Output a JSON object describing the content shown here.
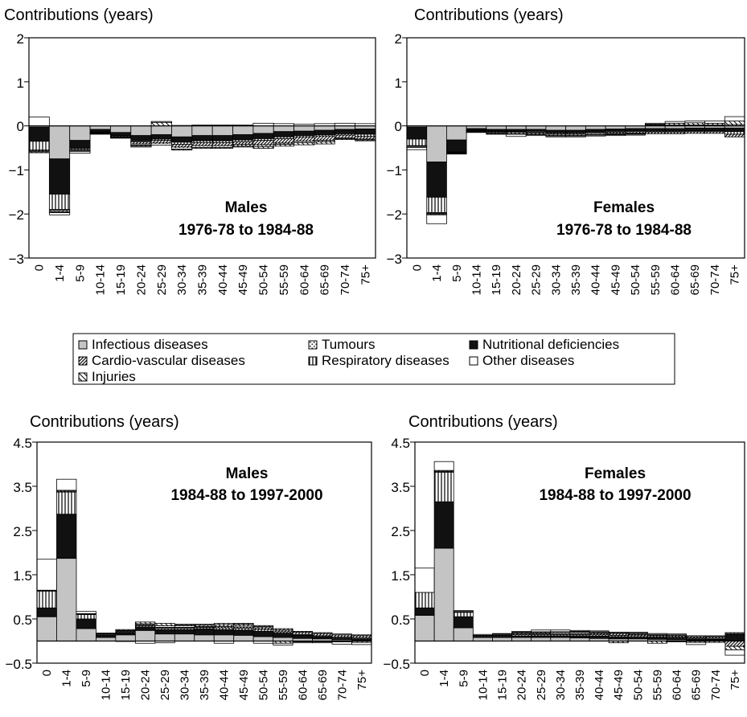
{
  "legend": {
    "items": [
      {
        "label": "Infectious diseases",
        "key": "infectious"
      },
      {
        "label": "Tumours",
        "key": "tumours"
      },
      {
        "label": "Nutritional deficiencies",
        "key": "nutritional"
      },
      {
        "label": "Cardio-vascular diseases",
        "key": "cardio"
      },
      {
        "label": "Respiratory diseases",
        "key": "respiratory"
      },
      {
        "label": "Other diseases",
        "key": "other"
      },
      {
        "label": "Injuries",
        "key": "injuries"
      }
    ]
  },
  "patterns": {
    "infectious": "solid-grey",
    "nutritional": "solid-black",
    "other": "solid-white",
    "tumours": "dotted",
    "respiratory": "vertical-lines",
    "cardio": "diagonal-dense",
    "injuries": "diagonal-sparse"
  },
  "colors": {
    "infectious": "#c4c4c4",
    "nutritional": "#111111",
    "other": "#ffffff"
  },
  "chart_data": [
    {
      "type": "bar",
      "stacked": true,
      "title_top": "Contributions (years)",
      "title_line1": "Males",
      "title_line2": "1976-78 to 1984-88",
      "ylim": [
        -3,
        2
      ],
      "yticks": [
        "2",
        "1",
        "0",
        "−1",
        "−2",
        "−3"
      ],
      "ytick_values": [
        2,
        1,
        0,
        -1,
        -2,
        -3
      ],
      "categories": [
        "0",
        "1-4",
        "5-9",
        "10-14",
        "15-19",
        "20-24",
        "25-29",
        "30-34",
        "35-39",
        "40-44",
        "45-49",
        "50-54",
        "55-59",
        "60-64",
        "65-69",
        "70-74",
        "75+"
      ],
      "series": [
        {
          "name": "Infectious diseases",
          "key": "infectious",
          "values": [
            -0.03,
            -0.75,
            -0.33,
            -0.08,
            -0.15,
            -0.22,
            -0.2,
            -0.25,
            -0.22,
            -0.22,
            -0.2,
            -0.17,
            -0.13,
            -0.12,
            -0.1,
            -0.08,
            -0.07
          ]
        },
        {
          "name": "Nutritional deficiencies",
          "key": "nutritional",
          "values": [
            -0.32,
            -0.8,
            -0.18,
            -0.06,
            -0.07,
            -0.12,
            -0.1,
            -0.12,
            -0.12,
            -0.12,
            -0.12,
            -0.12,
            -0.12,
            -0.1,
            -0.1,
            -0.1,
            -0.12
          ]
        },
        {
          "name": "Respiratory diseases",
          "key": "respiratory",
          "values": [
            -0.2,
            -0.35,
            -0.03,
            -0.01,
            -0.01,
            -0.02,
            -0.03,
            -0.05,
            -0.04,
            -0.04,
            -0.04,
            -0.04,
            -0.04,
            -0.03,
            -0.03,
            -0.03,
            -0.05
          ]
        },
        {
          "name": "Cardio-vascular diseases",
          "key": "cardio",
          "values": [
            -0.02,
            -0.02,
            -0.01,
            -0.01,
            -0.02,
            -0.05,
            -0.06,
            -0.06,
            -0.07,
            -0.07,
            -0.06,
            -0.1,
            -0.1,
            -0.1,
            -0.1,
            -0.06,
            -0.06
          ]
        },
        {
          "name": "Tumours",
          "key": "tumours",
          "values": [
            -0.02,
            -0.03,
            -0.02,
            -0.01,
            -0.01,
            -0.03,
            -0.05,
            -0.05,
            -0.04,
            -0.04,
            -0.04,
            -0.04,
            -0.03,
            -0.03,
            -0.03,
            -0.02,
            -0.02
          ]
        },
        {
          "name": "Injuries",
          "key": "injuries",
          "values": [
            -0.02,
            -0.02,
            -0.01,
            -0.01,
            -0.01,
            -0.02,
            0.08,
            -0.02,
            -0.02,
            -0.02,
            -0.02,
            -0.04,
            -0.04,
            -0.05,
            -0.05,
            -0.02,
            -0.02
          ]
        },
        {
          "name": "Other diseases",
          "key": "other",
          "values": [
            0.2,
            -0.05,
            -0.04,
            -0.01,
            -0.01,
            -0.02,
            0.02,
            0.01,
            0.02,
            0.02,
            0.02,
            0.06,
            0.05,
            0.04,
            0.05,
            0.06,
            0.05
          ]
        }
      ]
    },
    {
      "type": "bar",
      "stacked": true,
      "title_top": "Contributions (years)",
      "title_line1": "Females",
      "title_line2": "1976-78 to 1984-88",
      "ylim": [
        -3,
        2
      ],
      "yticks": [
        "2",
        "1",
        "0",
        "−1",
        "−2",
        "−3"
      ],
      "ytick_values": [
        2,
        1,
        0,
        -1,
        -2,
        -3
      ],
      "categories": [
        "0",
        "1-4",
        "5-9",
        "10-14",
        "15-19",
        "20-24",
        "25-29",
        "30-34",
        "35-39",
        "40-44",
        "45-49",
        "50-54",
        "55-59",
        "60-64",
        "65-69",
        "70-74",
        "75+"
      ],
      "series": [
        {
          "name": "Infectious diseases",
          "key": "infectious",
          "values": [
            -0.03,
            -0.82,
            -0.32,
            -0.06,
            -0.08,
            -0.08,
            -0.08,
            -0.1,
            -0.1,
            -0.08,
            -0.07,
            -0.06,
            -0.06,
            -0.06,
            -0.05,
            -0.05,
            -0.05
          ]
        },
        {
          "name": "Nutritional deficiencies",
          "key": "nutritional",
          "values": [
            -0.27,
            -0.8,
            -0.27,
            -0.04,
            -0.04,
            -0.04,
            -0.04,
            -0.05,
            -0.05,
            -0.05,
            -0.05,
            -0.05,
            -0.06,
            -0.06,
            -0.06,
            -0.06,
            -0.08
          ]
        },
        {
          "name": "Respiratory diseases",
          "key": "respiratory",
          "values": [
            -0.15,
            -0.35,
            -0.01,
            -0.01,
            -0.01,
            -0.01,
            -0.02,
            -0.02,
            -0.02,
            -0.02,
            -0.02,
            -0.02,
            -0.02,
            -0.02,
            -0.02,
            -0.02,
            -0.06
          ]
        },
        {
          "name": "Cardio-vascular diseases",
          "key": "cardio",
          "values": [
            -0.01,
            -0.02,
            -0.01,
            -0.01,
            -0.02,
            -0.02,
            -0.02,
            -0.02,
            -0.02,
            -0.02,
            -0.03,
            -0.03,
            -0.04,
            -0.04,
            -0.04,
            -0.04,
            -0.06
          ]
        },
        {
          "name": "Tumours",
          "key": "tumours",
          "values": [
            -0.02,
            -0.02,
            -0.01,
            -0.01,
            -0.02,
            -0.03,
            -0.03,
            -0.03,
            -0.03,
            -0.03,
            -0.02,
            -0.02,
            0.02,
            0.02,
            0.02,
            0.02,
            0.03
          ]
        },
        {
          "name": "Injuries",
          "key": "injuries",
          "values": [
            -0.01,
            -0.01,
            -0.01,
            -0.01,
            -0.01,
            -0.01,
            -0.01,
            -0.01,
            -0.01,
            -0.01,
            -0.01,
            -0.01,
            0.02,
            0.04,
            0.05,
            0.04,
            0.08
          ]
        },
        {
          "name": "Other diseases",
          "key": "other",
          "values": [
            -0.05,
            -0.2,
            -0.01,
            -0.01,
            -0.01,
            -0.05,
            -0.02,
            -0.02,
            -0.02,
            -0.02,
            -0.02,
            -0.02,
            0.02,
            0.04,
            0.04,
            0.05,
            0.1
          ]
        }
      ]
    },
    {
      "type": "bar",
      "stacked": true,
      "title_top": "Contributions (years)",
      "title_line1": "Males",
      "title_line2": "1984-88 to 1997-2000",
      "ylim": [
        -0.5,
        4.5
      ],
      "yticks": [
        "4.5",
        "3.5",
        "2.5",
        "1.5",
        "0.5",
        "−0.5"
      ],
      "ytick_values": [
        4.5,
        3.5,
        2.5,
        1.5,
        0.5,
        -0.5
      ],
      "categories": [
        "0",
        "1-4",
        "5-9",
        "10-14",
        "15-19",
        "20-24",
        "25-29",
        "30-34",
        "35-39",
        "40-44",
        "45-49",
        "50-54",
        "55-59",
        "60-64",
        "65-69",
        "70-74",
        "75+"
      ],
      "series": [
        {
          "name": "Infectious diseases",
          "key": "infectious",
          "values": [
            0.55,
            1.87,
            0.28,
            0.08,
            0.14,
            0.24,
            0.16,
            0.16,
            0.14,
            0.14,
            0.13,
            0.1,
            0.08,
            0.06,
            0.05,
            0.03,
            0.02
          ]
        },
        {
          "name": "Nutritional deficiencies",
          "key": "nutritional",
          "values": [
            0.2,
            1.0,
            0.22,
            0.06,
            0.05,
            0.08,
            0.1,
            0.1,
            0.14,
            0.12,
            0.12,
            0.12,
            0.1,
            0.07,
            0.05,
            0.04,
            0.03
          ]
        },
        {
          "name": "Respiratory diseases",
          "key": "respiratory",
          "values": [
            0.38,
            0.5,
            0.1,
            0.02,
            0.02,
            0.03,
            0.03,
            0.03,
            0.03,
            0.04,
            0.04,
            0.04,
            0.03,
            0.02,
            0.02,
            0.02,
            0.02
          ]
        },
        {
          "name": "Cardio-vascular diseases",
          "key": "cardio",
          "values": [
            0.01,
            0.02,
            0.01,
            0.01,
            0.02,
            0.02,
            0.02,
            0.02,
            0.02,
            0.03,
            0.03,
            0.04,
            0.04,
            0.05,
            0.05,
            0.05,
            0.05
          ]
        },
        {
          "name": "Tumours",
          "key": "tumours",
          "values": [
            0.01,
            0.02,
            0.01,
            0.01,
            0.01,
            0.02,
            0.04,
            0.04,
            0.03,
            0.04,
            0.04,
            0.03,
            0.03,
            0.02,
            0.02,
            0.02,
            0.02
          ]
        },
        {
          "name": "Injuries",
          "key": "injuries",
          "values": [
            0.0,
            0.0,
            0.0,
            0.0,
            0.02,
            0.04,
            0.05,
            0.02,
            0.02,
            0.03,
            0.03,
            0.02,
            -0.05,
            -0.02,
            -0.02,
            -0.02,
            -0.03
          ]
        },
        {
          "name": "Other diseases",
          "key": "other",
          "values": [
            0.7,
            0.25,
            0.05,
            0.0,
            -0.01,
            -0.05,
            -0.04,
            0.01,
            0.0,
            -0.05,
            0.01,
            -0.05,
            -0.04,
            -0.02,
            -0.02,
            -0.05,
            -0.05
          ]
        }
      ]
    },
    {
      "type": "bar",
      "stacked": true,
      "title_top": "Contributions (years)",
      "title_line1": "Females",
      "title_line2": "1984-88 to 1997-2000",
      "ylim": [
        -0.5,
        4.5
      ],
      "yticks": [
        "4.5",
        "3.5",
        "2.5",
        "1.5",
        "0.5",
        "−0.5"
      ],
      "ytick_values": [
        4.5,
        3.5,
        2.5,
        1.5,
        0.5,
        -0.5
      ],
      "categories": [
        "0",
        "1-4",
        "5-9",
        "10-14",
        "15-19",
        "20-24",
        "25-29",
        "30-34",
        "35-39",
        "40-44",
        "45-49",
        "50-54",
        "55-59",
        "60-64",
        "65-69",
        "70-74",
        "75+"
      ],
      "series": [
        {
          "name": "Infectious diseases",
          "key": "infectious",
          "values": [
            0.58,
            2.1,
            0.3,
            0.08,
            0.08,
            0.08,
            0.08,
            0.08,
            0.07,
            0.06,
            0.05,
            0.05,
            0.04,
            0.03,
            0.02,
            0.01,
            0.0
          ]
        },
        {
          "name": "Nutritional deficiencies",
          "key": "nutritional",
          "values": [
            0.17,
            1.05,
            0.25,
            0.02,
            0.02,
            0.03,
            0.04,
            0.04,
            0.05,
            0.05,
            0.05,
            0.04,
            0.04,
            0.04,
            0.03,
            0.03,
            0.15
          ]
        },
        {
          "name": "Respiratory diseases",
          "key": "respiratory",
          "values": [
            0.35,
            0.67,
            0.1,
            0.02,
            0.02,
            0.03,
            0.03,
            0.03,
            0.03,
            0.03,
            0.03,
            0.03,
            0.02,
            0.02,
            0.02,
            0.02,
            0.02
          ]
        },
        {
          "name": "Cardio-vascular diseases",
          "key": "cardio",
          "values": [
            0.0,
            0.02,
            0.01,
            0.01,
            0.01,
            0.02,
            0.02,
            0.02,
            0.02,
            0.03,
            0.04,
            0.03,
            0.03,
            0.03,
            0.03,
            0.03,
            -0.12
          ]
        },
        {
          "name": "Tumours",
          "key": "tumours",
          "values": [
            0.0,
            0.02,
            0.01,
            0.0,
            0.02,
            0.02,
            0.02,
            0.03,
            0.03,
            0.02,
            0.02,
            0.02,
            0.02,
            0.02,
            0.02,
            0.01,
            0.02
          ]
        },
        {
          "name": "Injuries",
          "key": "injuries",
          "values": [
            0.0,
            0.0,
            0.0,
            0.0,
            0.01,
            0.02,
            0.02,
            0.01,
            0.02,
            0.02,
            -0.04,
            0.01,
            -0.05,
            -0.02,
            -0.03,
            -0.03,
            -0.08
          ]
        },
        {
          "name": "Other diseases",
          "key": "other",
          "values": [
            0.55,
            0.2,
            0.02,
            0.02,
            0.01,
            0.02,
            0.04,
            0.04,
            0.02,
            0.02,
            0.01,
            0.02,
            0.02,
            0.02,
            -0.05,
            0.02,
            -0.12
          ]
        }
      ]
    }
  ]
}
